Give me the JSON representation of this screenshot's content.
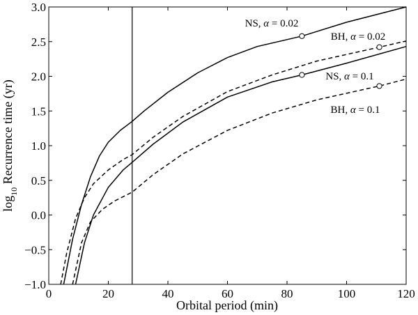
{
  "chart_data": {
    "type": "line",
    "xlabel": "Orbital period (min)",
    "ylabel": {
      "prefix": "log",
      "sub": "10",
      "rest": " Recurrence time (yr)"
    },
    "xlim": [
      0,
      120
    ],
    "ylim": [
      -1.0,
      3.0
    ],
    "x_ticks": [
      0,
      20,
      40,
      60,
      80,
      100,
      120
    ],
    "x_tick_labels": [
      "0",
      "20",
      "40",
      "60",
      "80",
      "100",
      "120"
    ],
    "y_ticks": [
      -1.0,
      -0.5,
      0.0,
      0.5,
      1.0,
      1.5,
      2.0,
      2.5,
      3.0
    ],
    "y_tick_labels": [
      "−1.0",
      "−0.5",
      "0.0",
      "0.5",
      "1.0",
      "1.5",
      "2.0",
      "2.5",
      "3.0"
    ],
    "grid": false,
    "legend": "none",
    "vertical_line": {
      "x": 28
    },
    "series": [
      {
        "label": {
          "text": "NS, ",
          "symbol": "α",
          "value": " = 0.02"
        },
        "style": "solid",
        "color": "#000000",
        "x": [
          5,
          8,
          11,
          14,
          17,
          20,
          24,
          28,
          32,
          40,
          50,
          60,
          70,
          85,
          100,
          120
        ],
        "y": [
          -1.0,
          -0.35,
          0.15,
          0.55,
          0.85,
          1.05,
          1.22,
          1.35,
          1.5,
          1.77,
          2.05,
          2.27,
          2.43,
          2.58,
          2.78,
          3.0
        ],
        "marker": {
          "x": 85,
          "y": 2.58
        }
      },
      {
        "label": {
          "text": "BH, ",
          "symbol": "α",
          "value": " = 0.02"
        },
        "style": "dashed",
        "color": "#000000",
        "x": [
          4,
          6,
          9,
          12,
          15,
          20,
          25,
          28,
          35,
          45,
          60,
          75,
          90,
          111,
          120
        ],
        "y": [
          -1.0,
          -0.55,
          -0.05,
          0.25,
          0.45,
          0.65,
          0.8,
          0.87,
          1.12,
          1.42,
          1.78,
          2.02,
          2.22,
          2.42,
          2.51
        ],
        "marker": {
          "x": 111,
          "y": 2.42
        }
      },
      {
        "label": {
          "text": "NS, ",
          "symbol": "α",
          "value": " = 0.1"
        },
        "style": "solid",
        "color": "#000000",
        "x": [
          9,
          12,
          15,
          20,
          25,
          28,
          35,
          45,
          60,
          75,
          85,
          100,
          120
        ],
        "y": [
          -1.0,
          -0.4,
          0.0,
          0.4,
          0.65,
          0.76,
          1.02,
          1.34,
          1.7,
          1.92,
          2.02,
          2.19,
          2.43
        ],
        "marker": {
          "x": 85,
          "y": 2.02
        }
      },
      {
        "label": {
          "text": "BH, ",
          "symbol": "α",
          "value": " = 0.1"
        },
        "style": "dashed",
        "color": "#000000",
        "x": [
          8,
          11,
          14,
          18,
          22,
          28,
          35,
          45,
          60,
          75,
          90,
          111,
          120
        ],
        "y": [
          -1.0,
          -0.4,
          -0.1,
          0.08,
          0.2,
          0.33,
          0.58,
          0.88,
          1.22,
          1.47,
          1.66,
          1.86,
          1.96
        ],
        "marker": {
          "x": 111,
          "y": 1.86
        }
      }
    ]
  }
}
